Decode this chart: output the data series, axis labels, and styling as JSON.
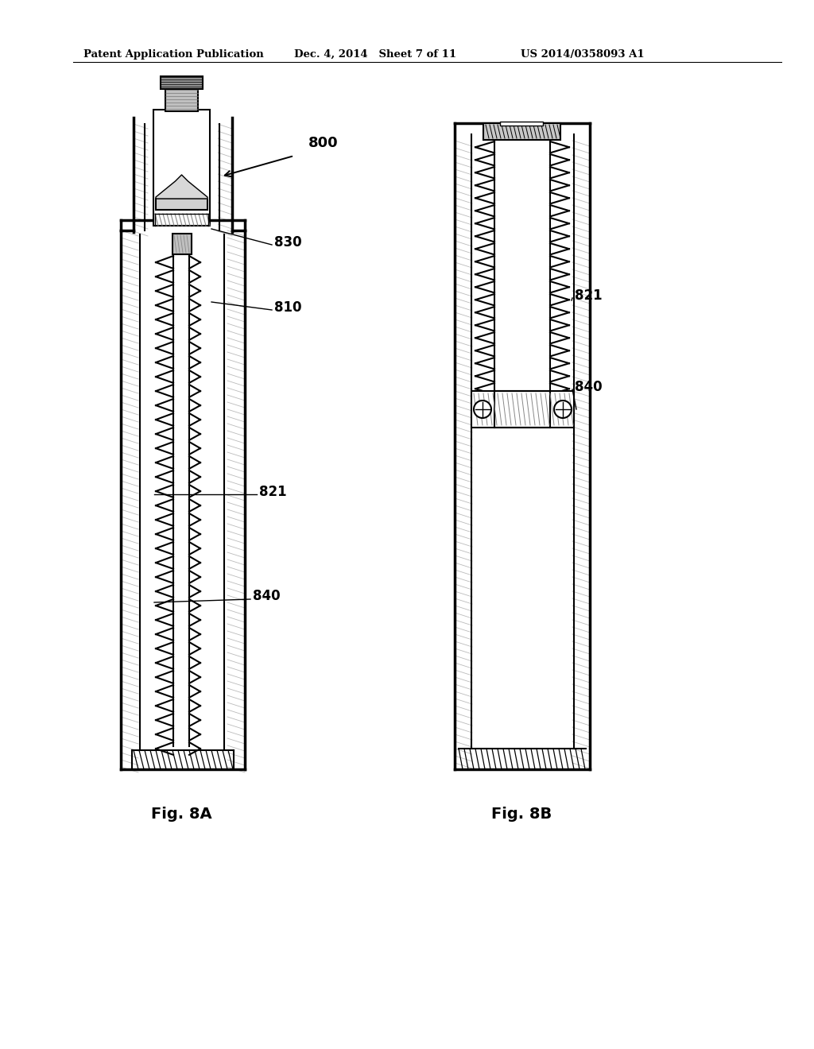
{
  "header_left": "Patent Application Publication",
  "header_mid": "Dec. 4, 2014   Sheet 7 of 11",
  "header_right": "US 2014/0358093 A1",
  "fig_a_label": "Fig. 8A",
  "fig_b_label": "Fig. 8B",
  "bg": "#ffffff",
  "lc": "#000000",
  "gray_light": "#cccccc",
  "gray_med": "#888888",
  "gray_dark": "#444444"
}
